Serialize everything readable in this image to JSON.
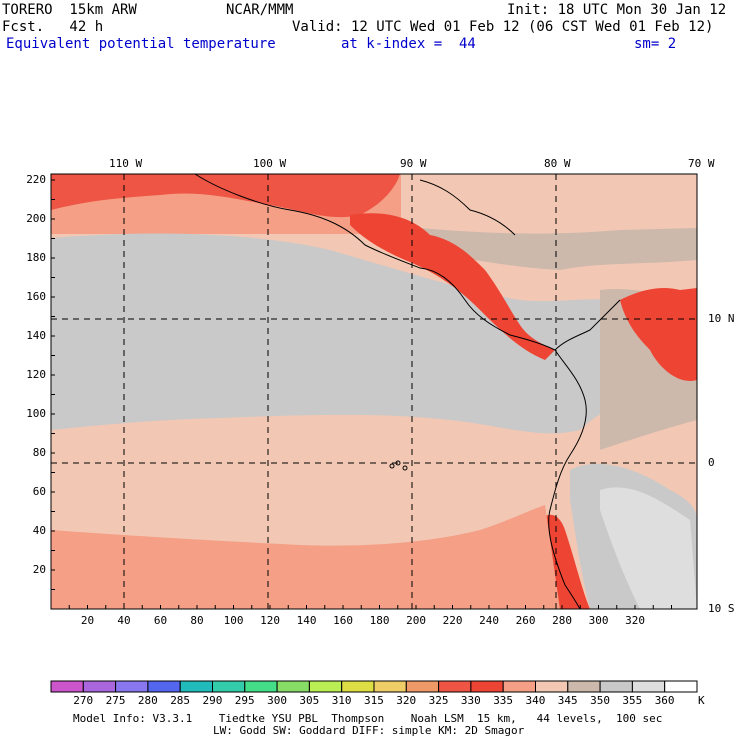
{
  "header": {
    "model": "TORERO  15km ARW",
    "org": "NCAR/MMM",
    "init": "Init: 18 UTC Mon 30 Jan 12",
    "fcst": "Fcst.   42 h",
    "valid": "Valid: 12 UTC Wed 01 Feb 12 (06 CST Wed 01 Feb 12)",
    "field": "Equivalent potential temperature",
    "level": "at k-index =  44",
    "smooth": "sm= 2"
  },
  "map": {
    "lon_labels": [
      "110 W",
      "100 W",
      "90 W",
      "80 W",
      "70 W"
    ],
    "lat_labels": [
      "10 N",
      "0",
      "10 S"
    ],
    "grid_x_labels": [
      "20",
      "40",
      "60",
      "80",
      "100",
      "120",
      "140",
      "160",
      "180",
      "200",
      "220",
      "240",
      "260",
      "280",
      "300",
      "320"
    ],
    "grid_y_labels": [
      "20",
      "40",
      "60",
      "80",
      "100",
      "120",
      "140",
      "160",
      "180",
      "200",
      "220"
    ]
  },
  "colorbar": {
    "levels": [
      "270",
      "275",
      "280",
      "285",
      "290",
      "295",
      "300",
      "305",
      "310",
      "315",
      "320",
      "325",
      "330",
      "335",
      "340",
      "345",
      "350",
      "355",
      "360"
    ],
    "unit": "K",
    "colors": [
      "#cc55cc",
      "#aa66dd",
      "#8877ee",
      "#5566ee",
      "#22bbbb",
      "#33ccaa",
      "#44dd88",
      "#88dd66",
      "#bbee55",
      "#dddd44",
      "#eecc66",
      "#ee9966",
      "#ee5544",
      "#ee4433",
      "#f49f86",
      "#f2c8b4",
      "#cdb8ac",
      "#c9c9c9",
      "#dedede",
      "#ffffff"
    ]
  },
  "footer": {
    "line1": "Model Info: V3.3.1    Tiedtke YSU PBL  Thompson    Noah LSM  15 km,   44 levels,  100 sec",
    "line2": "LW: Godd SW: Goddard DIFF: simple KM: 2D Smagor"
  }
}
